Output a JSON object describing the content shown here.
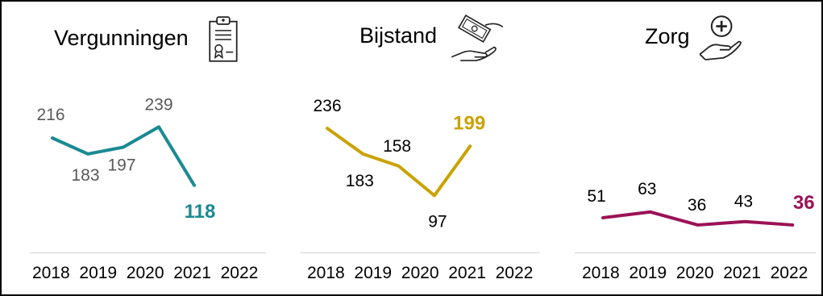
{
  "chart_data": [
    {
      "type": "line",
      "title": "Vergunningen",
      "icon": "certificate-document-icon",
      "color": "#1a8a92",
      "label_color": "#595959",
      "x": [
        "2018",
        "2019",
        "2020",
        "2021",
        "2022"
      ],
      "values": [
        216,
        183,
        197,
        239,
        118
      ],
      "last_value_emphasized": true
    },
    {
      "type": "line",
      "title": "Bijstand",
      "icon": "money-hand-icon",
      "color": "#c9a300",
      "label_color": "#000000",
      "x": [
        "2018",
        "2019",
        "2020",
        "2021",
        "2022"
      ],
      "values": [
        236,
        183,
        158,
        97,
        199
      ],
      "last_value_emphasized": true
    },
    {
      "type": "line",
      "title": "Zorg",
      "icon": "care-hand-plus-icon",
      "color": "#9b1256",
      "label_color": "#000000",
      "x": [
        "2018",
        "2019",
        "2020",
        "2021",
        "2022"
      ],
      "values": [
        51,
        63,
        36,
        43,
        36
      ],
      "last_value_emphasized": true
    }
  ]
}
